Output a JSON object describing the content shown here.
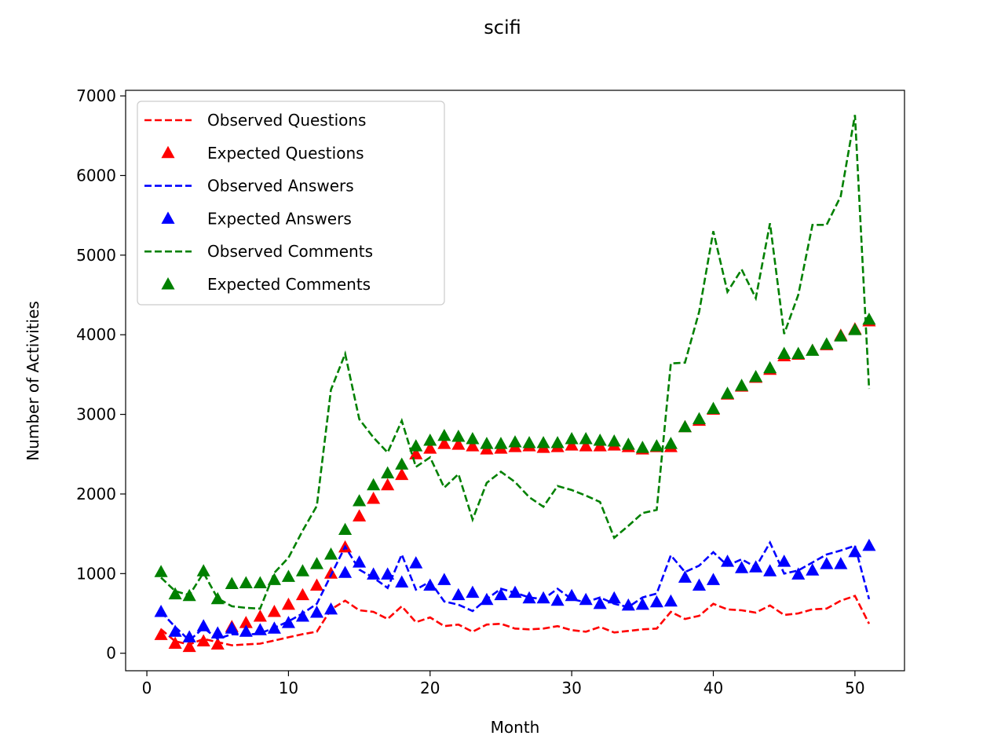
{
  "chart_data": {
    "type": "line",
    "title": "scifi",
    "xlabel": "Month",
    "ylabel": "Number of Activities",
    "xlim": [
      -1.5,
      53.5
    ],
    "ylim": [
      -220,
      7070
    ],
    "xticks": [
      0,
      10,
      20,
      30,
      40,
      50
    ],
    "yticks": [
      0,
      1000,
      2000,
      3000,
      4000,
      5000,
      6000,
      7000
    ],
    "legend_position": "upper-left",
    "x": [
      1,
      2,
      3,
      4,
      5,
      6,
      7,
      8,
      9,
      10,
      11,
      12,
      13,
      14,
      15,
      16,
      17,
      18,
      19,
      20,
      21,
      22,
      23,
      24,
      25,
      26,
      27,
      28,
      29,
      30,
      31,
      32,
      33,
      34,
      35,
      36,
      37,
      38,
      39,
      40,
      41,
      42,
      43,
      44,
      45,
      46,
      47,
      48,
      49,
      50,
      51
    ],
    "series": [
      {
        "name": "Observed Questions",
        "style": "dashed",
        "color": "#ff0000",
        "values": [
          300,
          150,
          110,
          180,
          140,
          100,
          110,
          120,
          160,
          200,
          240,
          270,
          550,
          660,
          540,
          520,
          430,
          590,
          390,
          450,
          340,
          360,
          270,
          360,
          370,
          310,
          300,
          310,
          340,
          290,
          270,
          330,
          260,
          280,
          300,
          310,
          520,
          430,
          470,
          620,
          550,
          540,
          510,
          600,
          480,
          500,
          550,
          560,
          660,
          720,
          370
        ]
      },
      {
        "name": "Expected Questions",
        "style": "triangle",
        "color": "#ff0000",
        "values": [
          230,
          120,
          80,
          150,
          110,
          330,
          380,
          460,
          520,
          610,
          730,
          850,
          1000,
          1330,
          1720,
          1940,
          2110,
          2240,
          2500,
          2570,
          2630,
          2620,
          2600,
          2560,
          2570,
          2590,
          2600,
          2580,
          2590,
          2610,
          2600,
          2600,
          2610,
          2590,
          2560,
          2590,
          2590,
          2840,
          2920,
          3060,
          3250,
          3350,
          3460,
          3560,
          3730,
          3750,
          3800,
          3870,
          3990,
          4070,
          4170
        ]
      },
      {
        "name": "Observed Answers",
        "style": "dashed",
        "color": "#0000ff",
        "values": [
          520,
          330,
          160,
          320,
          180,
          240,
          230,
          250,
          320,
          400,
          500,
          620,
          980,
          1340,
          1050,
          950,
          820,
          1240,
          800,
          900,
          650,
          610,
          530,
          680,
          810,
          760,
          700,
          680,
          810,
          680,
          640,
          700,
          620,
          580,
          700,
          750,
          1230,
          1020,
          1100,
          1270,
          1100,
          1180,
          1080,
          1390,
          1000,
          1040,
          1140,
          1240,
          1290,
          1350,
          680
        ]
      },
      {
        "name": "Expected Answers",
        "style": "triangle",
        "color": "#0000ff",
        "values": [
          520,
          270,
          200,
          340,
          250,
          310,
          270,
          290,
          310,
          380,
          460,
          510,
          550,
          1010,
          1140,
          990,
          990,
          890,
          1130,
          850,
          920,
          730,
          760,
          670,
          730,
          760,
          690,
          690,
          660,
          720,
          670,
          620,
          690,
          600,
          610,
          640,
          650,
          950,
          850,
          920,
          1150,
          1070,
          1080,
          1030,
          1150,
          990,
          1040,
          1120,
          1120,
          1270,
          1350
        ]
      },
      {
        "name": "Observed Comments",
        "style": "dashed",
        "color": "#008000",
        "values": [
          950,
          780,
          730,
          1010,
          690,
          590,
          570,
          560,
          1010,
          1200,
          1540,
          1850,
          3310,
          3760,
          2940,
          2710,
          2520,
          2920,
          2340,
          2460,
          2080,
          2250,
          1680,
          2140,
          2280,
          2150,
          1960,
          1840,
          2100,
          2050,
          1980,
          1900,
          1450,
          1600,
          1760,
          1800,
          3640,
          3650,
          4290,
          5300,
          4540,
          4820,
          4460,
          5400,
          4010,
          4500,
          5380,
          5380,
          5740,
          6760,
          3320
        ]
      },
      {
        "name": "Expected Comments",
        "style": "triangle",
        "color": "#008000",
        "values": [
          1020,
          740,
          720,
          1030,
          680,
          870,
          880,
          880,
          920,
          960,
          1030,
          1120,
          1240,
          1550,
          1910,
          2110,
          2260,
          2370,
          2600,
          2670,
          2730,
          2720,
          2690,
          2630,
          2630,
          2650,
          2640,
          2640,
          2640,
          2690,
          2690,
          2670,
          2660,
          2620,
          2580,
          2600,
          2630,
          2840,
          2940,
          3070,
          3260,
          3360,
          3470,
          3580,
          3760,
          3760,
          3800,
          3880,
          3980,
          4060,
          4190
        ]
      }
    ]
  }
}
